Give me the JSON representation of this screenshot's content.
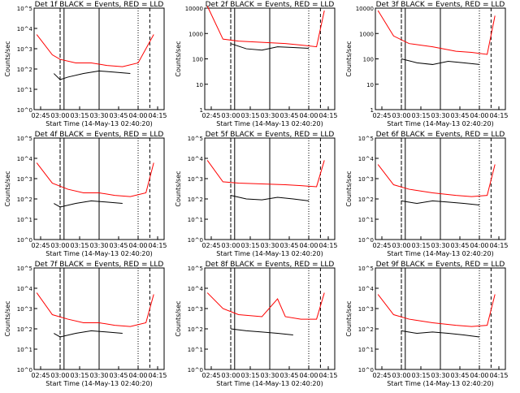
{
  "chart_data": [
    {
      "type": "line",
      "title": "Det 1f BLACK = Events, RED = LLD",
      "xlabel": "Start Time (14-May-13 02:40:20)",
      "ylabel": "Counts/sec",
      "yscale": "log",
      "xlim": [
        "02:40",
        "04:20"
      ],
      "ylim": [
        1,
        100000
      ],
      "xticklabels": [
        "02:45",
        "03:00",
        "03:15",
        "03:30",
        "03:45",
        "04:00",
        "04:15"
      ],
      "yticklabels": [
        "10^0",
        "10^1",
        "10^2",
        "10^3",
        "10^4",
        "10^5"
      ],
      "series": [
        {
          "name": "Events",
          "color": "#000000",
          "values": [
            [
              2.92,
              60
            ],
            [
              3.0,
              30
            ],
            [
              3.1,
              40
            ],
            [
              3.3,
              60
            ],
            [
              3.5,
              80
            ],
            [
              3.7,
              70
            ],
            [
              3.9,
              60
            ]
          ]
        },
        {
          "name": "LLD",
          "color": "#ff0000",
          "values": [
            [
              2.7,
              5000
            ],
            [
              2.9,
              500
            ],
            [
              3.0,
              300
            ],
            [
              3.2,
              200
            ],
            [
              3.4,
              200
            ],
            [
              3.6,
              150
            ],
            [
              3.8,
              130
            ],
            [
              4.0,
              200
            ],
            [
              4.2,
              5000
            ]
          ]
        }
      ]
    },
    {
      "type": "line",
      "title": "Det 2f BLACK = Events, RED = LLD",
      "xlabel": "Start Time (14-May-13 02:40:20)",
      "ylabel": "Counts/sec",
      "yscale": "log",
      "xlim": [
        "02:40",
        "04:20"
      ],
      "ylim": [
        1,
        10000
      ],
      "xticklabels": [
        "02:45",
        "03:00",
        "03:15",
        "03:30",
        "03:45",
        "04:00",
        "04:15"
      ],
      "yticklabels": [
        "1",
        "10",
        "100",
        "1000",
        "10000"
      ],
      "series": [
        {
          "name": "Events",
          "color": "#000000",
          "values": [
            [
              3.0,
              400
            ],
            [
              3.2,
              250
            ],
            [
              3.4,
              220
            ],
            [
              3.6,
              300
            ],
            [
              3.8,
              280
            ],
            [
              4.0,
              260
            ]
          ]
        },
        {
          "name": "LLD",
          "color": "#ff0000",
          "values": [
            [
              2.7,
              12000
            ],
            [
              2.9,
              600
            ],
            [
              3.1,
              500
            ],
            [
              3.4,
              450
            ],
            [
              3.7,
              400
            ],
            [
              3.9,
              350
            ],
            [
              4.1,
              300
            ],
            [
              4.2,
              8000
            ]
          ]
        }
      ]
    },
    {
      "type": "line",
      "title": "Det 3f BLACK = Events, RED = LLD",
      "xlabel": "Start Time (14-May-13 02:40:20)",
      "ylabel": "Counts/sec",
      "yscale": "log",
      "xlim": [
        "02:40",
        "04:20"
      ],
      "ylim": [
        1,
        10000
      ],
      "xticklabels": [
        "02:45",
        "03:00",
        "03:15",
        "03:30",
        "03:45",
        "04:00",
        "04:15"
      ],
      "yticklabels": [
        "1",
        "10",
        "100",
        "1000",
        "10000"
      ],
      "series": [
        {
          "name": "Events",
          "color": "#000000",
          "values": [
            [
              3.0,
              100
            ],
            [
              3.2,
              70
            ],
            [
              3.4,
              60
            ],
            [
              3.6,
              80
            ],
            [
              3.8,
              70
            ],
            [
              4.0,
              60
            ]
          ]
        },
        {
          "name": "LLD",
          "color": "#ff0000",
          "values": [
            [
              2.7,
              8000
            ],
            [
              2.9,
              800
            ],
            [
              3.1,
              400
            ],
            [
              3.4,
              300
            ],
            [
              3.7,
              200
            ],
            [
              3.9,
              180
            ],
            [
              4.1,
              150
            ],
            [
              4.2,
              5000
            ]
          ]
        }
      ]
    },
    {
      "type": "line",
      "title": "Det 4f BLACK = Events, RED = LLD",
      "xlabel": "Start Time (14-May-13 02:40:20)",
      "ylabel": "Counts/sec",
      "yscale": "log",
      "xlim": [
        "02:40",
        "04:20"
      ],
      "ylim": [
        1,
        100000
      ],
      "xticklabels": [
        "02:45",
        "03:00",
        "03:15",
        "03:30",
        "03:45",
        "04:00",
        "04:15"
      ],
      "yticklabels": [
        "10^0",
        "10^1",
        "10^2",
        "10^3",
        "10^4",
        "10^5"
      ],
      "series": [
        {
          "name": "Events",
          "color": "#000000",
          "values": [
            [
              2.92,
              60
            ],
            [
              3.0,
              40
            ],
            [
              3.2,
              60
            ],
            [
              3.4,
              80
            ],
            [
              3.6,
              70
            ],
            [
              3.8,
              60
            ]
          ]
        },
        {
          "name": "LLD",
          "color": "#ff0000",
          "values": [
            [
              2.7,
              6000
            ],
            [
              2.9,
              600
            ],
            [
              3.1,
              300
            ],
            [
              3.3,
              200
            ],
            [
              3.5,
              200
            ],
            [
              3.7,
              150
            ],
            [
              3.9,
              130
            ],
            [
              4.1,
              200
            ],
            [
              4.2,
              6000
            ]
          ]
        }
      ]
    },
    {
      "type": "line",
      "title": "Det 5f BLACK = Events, RED = LLD",
      "xlabel": "Start Time (14-May-13 02:40:20)",
      "ylabel": "Counts/sec",
      "yscale": "log",
      "xlim": [
        "02:40",
        "04:20"
      ],
      "ylim": [
        1,
        100000
      ],
      "xticklabels": [
        "02:45",
        "03:00",
        "03:15",
        "03:30",
        "03:45",
        "04:00",
        "04:15"
      ],
      "yticklabels": [
        "10^0",
        "10^1",
        "10^2",
        "10^3",
        "10^4",
        "10^5"
      ],
      "series": [
        {
          "name": "Events",
          "color": "#000000",
          "values": [
            [
              3.0,
              150
            ],
            [
              3.2,
              100
            ],
            [
              3.4,
              90
            ],
            [
              3.6,
              120
            ],
            [
              3.8,
              100
            ],
            [
              4.0,
              80
            ]
          ]
        },
        {
          "name": "LLD",
          "color": "#ff0000",
          "values": [
            [
              2.7,
              8000
            ],
            [
              2.9,
              700
            ],
            [
              3.1,
              600
            ],
            [
              3.4,
              550
            ],
            [
              3.7,
              500
            ],
            [
              3.9,
              450
            ],
            [
              4.1,
              400
            ],
            [
              4.2,
              8000
            ]
          ]
        }
      ]
    },
    {
      "type": "line",
      "title": "Det 6f BLACK = Events, RED = LLD",
      "xlabel": "Start Time (14-May-13 02:40:20)",
      "ylabel": "Counts/sec",
      "yscale": "log",
      "xlim": [
        "02:40",
        "04:20"
      ],
      "ylim": [
        1,
        100000
      ],
      "xticklabels": [
        "02:45",
        "03:00",
        "03:15",
        "03:30",
        "03:45",
        "04:00",
        "04:15"
      ],
      "yticklabels": [
        "10^0",
        "10^1",
        "10^2",
        "10^3",
        "10^4",
        "10^5"
      ],
      "series": [
        {
          "name": "Events",
          "color": "#000000",
          "values": [
            [
              3.0,
              80
            ],
            [
              3.2,
              60
            ],
            [
              3.4,
              80
            ],
            [
              3.6,
              70
            ],
            [
              3.8,
              60
            ],
            [
              4.0,
              50
            ]
          ]
        },
        {
          "name": "LLD",
          "color": "#ff0000",
          "values": [
            [
              2.7,
              5000
            ],
            [
              2.9,
              500
            ],
            [
              3.1,
              300
            ],
            [
              3.4,
              200
            ],
            [
              3.7,
              150
            ],
            [
              3.9,
              130
            ],
            [
              4.1,
              150
            ],
            [
              4.2,
              5000
            ]
          ]
        }
      ]
    },
    {
      "type": "line",
      "title": "Det 7f BLACK = Events, RED = LLD",
      "xlabel": "Start Time (14-May-13 02:40:20)",
      "ylabel": "Counts/sec",
      "yscale": "log",
      "xlim": [
        "02:40",
        "04:20"
      ],
      "ylim": [
        1,
        100000
      ],
      "xticklabels": [
        "02:45",
        "03:00",
        "03:15",
        "03:30",
        "03:45",
        "04:00",
        "04:15"
      ],
      "yticklabels": [
        "10^0",
        "10^1",
        "10^2",
        "10^3",
        "10^4",
        "10^5"
      ],
      "series": [
        {
          "name": "Events",
          "color": "#000000",
          "values": [
            [
              2.92,
              60
            ],
            [
              3.0,
              40
            ],
            [
              3.2,
              60
            ],
            [
              3.4,
              80
            ],
            [
              3.6,
              70
            ],
            [
              3.8,
              60
            ]
          ]
        },
        {
          "name": "LLD",
          "color": "#ff0000",
          "values": [
            [
              2.7,
              6000
            ],
            [
              2.9,
              500
            ],
            [
              3.1,
              300
            ],
            [
              3.3,
              200
            ],
            [
              3.5,
              200
            ],
            [
              3.7,
              150
            ],
            [
              3.9,
              130
            ],
            [
              4.1,
              200
            ],
            [
              4.2,
              5000
            ]
          ]
        }
      ]
    },
    {
      "type": "line",
      "title": "Det 8f BLACK = Events, RED = LLD",
      "xlabel": "Start Time (14-May-13 02:40:20)",
      "ylabel": "Counts/sec",
      "yscale": "log",
      "xlim": [
        "02:40",
        "04:20"
      ],
      "ylim": [
        1,
        100000
      ],
      "xticklabels": [
        "02:45",
        "03:00",
        "03:15",
        "03:30",
        "03:45",
        "04:00",
        "04:15"
      ],
      "yticklabels": [
        "10^0",
        "10^1",
        "10^2",
        "10^3",
        "10^4",
        "10^5"
      ],
      "series": [
        {
          "name": "Events",
          "color": "#000000",
          "values": [
            [
              3.0,
              100
            ],
            [
              3.2,
              80
            ],
            [
              3.4,
              70
            ],
            [
              3.6,
              60
            ],
            [
              3.8,
              50
            ]
          ]
        },
        {
          "name": "LLD",
          "color": "#ff0000",
          "values": [
            [
              2.7,
              6000
            ],
            [
              2.9,
              1000
            ],
            [
              3.1,
              500
            ],
            [
              3.4,
              400
            ],
            [
              3.6,
              3000
            ],
            [
              3.7,
              400
            ],
            [
              3.9,
              300
            ],
            [
              4.1,
              300
            ],
            [
              4.2,
              6000
            ]
          ]
        }
      ]
    },
    {
      "type": "line",
      "title": "Det 9f BLACK = Events, RED = LLD",
      "xlabel": "Start Time (14-May-13 02:40:20)",
      "ylabel": "Counts/sec",
      "yscale": "log",
      "xlim": [
        "02:40",
        "04:20"
      ],
      "ylim": [
        1,
        100000
      ],
      "xticklabels": [
        "02:45",
        "03:00",
        "03:15",
        "03:30",
        "03:45",
        "04:00",
        "04:15"
      ],
      "yticklabels": [
        "10^0",
        "10^1",
        "10^2",
        "10^3",
        "10^4",
        "10^5"
      ],
      "series": [
        {
          "name": "Events",
          "color": "#000000",
          "values": [
            [
              3.0,
              80
            ],
            [
              3.2,
              60
            ],
            [
              3.4,
              70
            ],
            [
              3.6,
              60
            ],
            [
              3.8,
              50
            ],
            [
              4.0,
              40
            ]
          ]
        },
        {
          "name": "LLD",
          "color": "#ff0000",
          "values": [
            [
              2.7,
              5000
            ],
            [
              2.9,
              500
            ],
            [
              3.1,
              300
            ],
            [
              3.4,
              200
            ],
            [
              3.7,
              150
            ],
            [
              3.9,
              130
            ],
            [
              4.1,
              150
            ],
            [
              4.2,
              5000
            ]
          ]
        }
      ]
    }
  ]
}
